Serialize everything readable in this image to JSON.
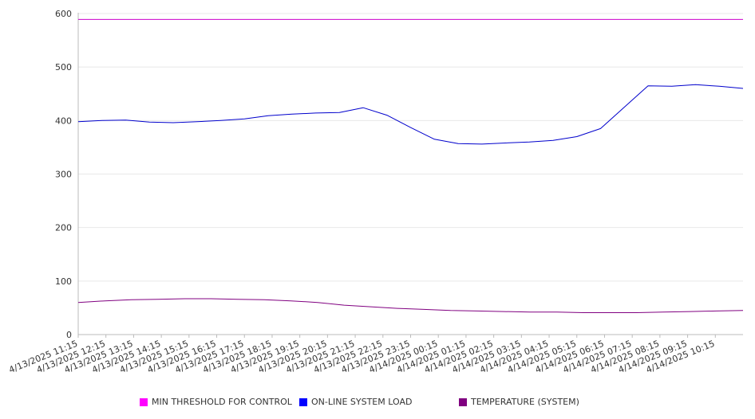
{
  "chart_data": {
    "type": "line",
    "title": "",
    "xlabel": "",
    "ylabel": "",
    "ylim": [
      0,
      600
    ],
    "y_ticks": [
      0,
      100,
      200,
      300,
      400,
      500,
      600
    ],
    "grid": true,
    "legend_position": "bottom",
    "x_tick_labels": [
      "4/13/2025 11:15",
      "4/13/2025 12:15",
      "4/13/2025 13:15",
      "4/13/2025 14:15",
      "4/13/2025 15:15",
      "4/13/2025 16:15",
      "4/13/2025 17:15",
      "4/13/2025 18:15",
      "4/13/2025 19:15",
      "4/13/2025 20:15",
      "4/13/2025 21:15",
      "4/13/2025 22:15",
      "4/13/2025 23:15",
      "4/14/2025 00:15",
      "4/14/2025 01:15",
      "4/14/2025 02:15",
      "4/14/2025 03:15",
      "4/14/2025 04:15",
      "4/14/2025 05:15",
      "4/14/2025 06:15",
      "4/14/2025 07:15",
      "4/14/2025 08:15",
      "4/14/2025 09:15",
      "4/14/2025 10:15"
    ],
    "series": [
      {
        "name": "MIN THRESHOLD FOR CONTROL",
        "color": "#cc00cc",
        "legend_color": "#ff00ff",
        "values": [
          589,
          589,
          589,
          589,
          589,
          589,
          589,
          589,
          589,
          589,
          589,
          589,
          589,
          589,
          589,
          589,
          589,
          589,
          589,
          589,
          589,
          589,
          589,
          589,
          589
        ]
      },
      {
        "name": "ON-LINE SYSTEM LOAD",
        "color": "#0000cc",
        "legend_color": "#0000ff",
        "values": [
          398,
          400,
          401,
          397,
          396,
          398,
          400,
          403,
          409,
          412,
          414,
          415,
          424,
          410,
          387,
          365,
          357,
          356,
          358,
          360,
          363,
          370,
          385,
          425,
          465,
          464,
          467,
          464,
          460
        ]
      },
      {
        "name": "TEMPERATURE (SYSTEM)",
        "color": "#800080",
        "legend_color": "#800080",
        "values": [
          60,
          63,
          65,
          66,
          67,
          67,
          66,
          65,
          63,
          60,
          55,
          52,
          49,
          47,
          45,
          44,
          43,
          42,
          42,
          41,
          41,
          41,
          42,
          43,
          44,
          45
        ]
      }
    ]
  }
}
